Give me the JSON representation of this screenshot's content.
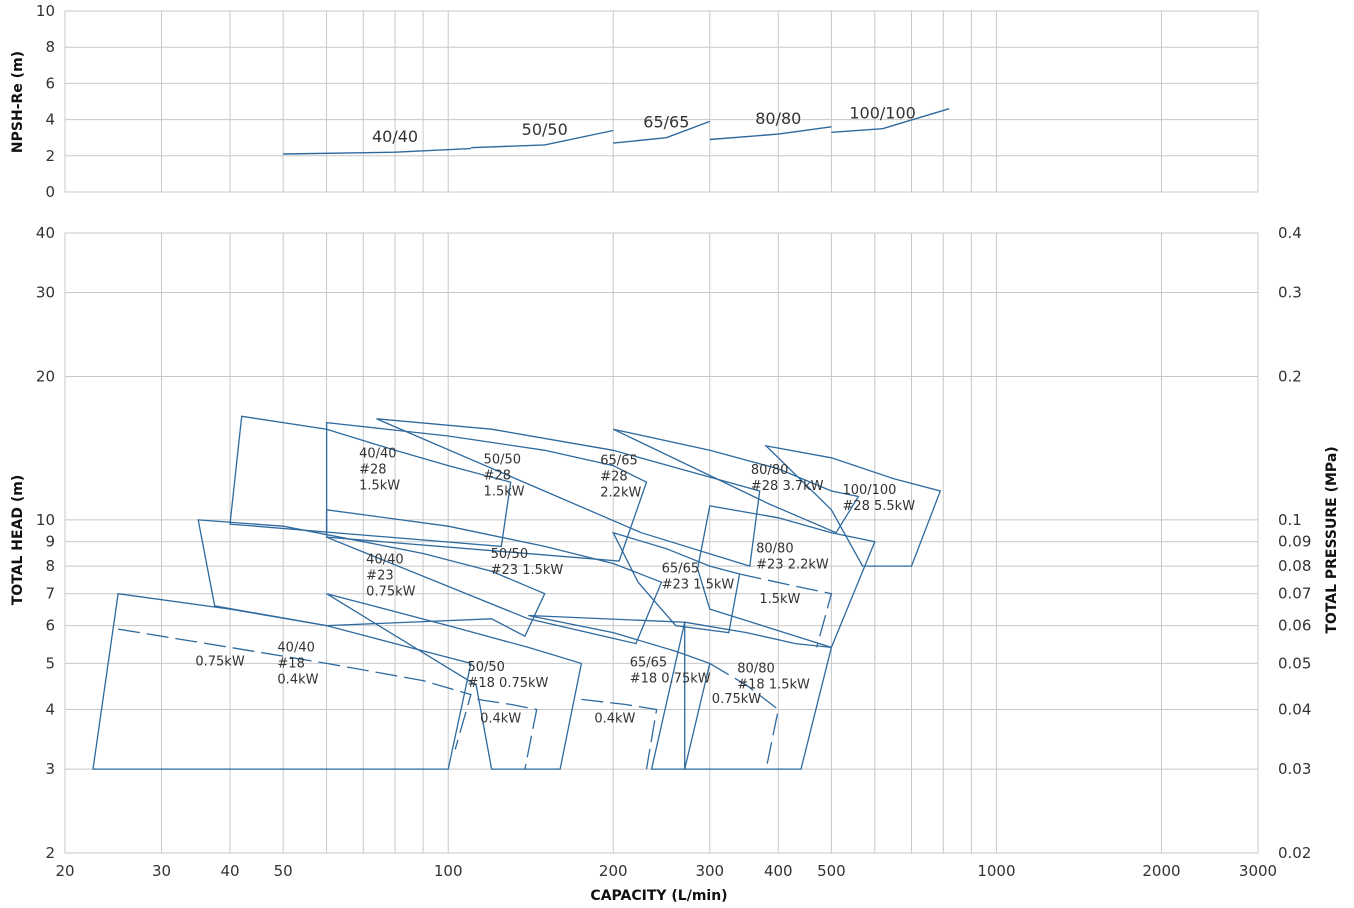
{
  "chart_data": [
    {
      "type": "line",
      "panel": "npsh",
      "ylabel": "NPSH-Re (m)",
      "xscale": "log",
      "xlim": [
        20,
        3000
      ],
      "ylim": [
        0,
        10
      ],
      "y_ticks": [
        "0",
        "2",
        "4",
        "6",
        "8",
        "10"
      ],
      "grid": true,
      "series": [
        {
          "name": "40/40",
          "points": [
            [
              50,
              2.1
            ],
            [
              80,
              2.2
            ],
            [
              110,
              2.4
            ]
          ]
        },
        {
          "name": "50/50",
          "points": [
            [
              110,
              2.45
            ],
            [
              150,
              2.6
            ],
            [
              200,
              3.4
            ]
          ]
        },
        {
          "name": "65/65",
          "points": [
            [
              200,
              2.7
            ],
            [
              250,
              3.0
            ],
            [
              300,
              3.9
            ]
          ]
        },
        {
          "name": "80/80",
          "points": [
            [
              300,
              2.9
            ],
            [
              400,
              3.2
            ],
            [
              500,
              3.6
            ]
          ]
        },
        {
          "name": "100/100",
          "points": [
            [
              500,
              3.3
            ],
            [
              620,
              3.5
            ],
            [
              820,
              4.6
            ]
          ]
        }
      ]
    },
    {
      "type": "line",
      "panel": "performance",
      "xlabel": "CAPACITY (L/min)",
      "ylabel": "TOTAL HEAD (m)",
      "y2label": "TOTAL PRESSURE (MPa)",
      "xscale": "log",
      "yscale": "log",
      "xlim": [
        20,
        3000
      ],
      "ylim": [
        2,
        40
      ],
      "x_ticks": [
        "20",
        "30",
        "40",
        "50",
        "100",
        "200",
        "300",
        "400",
        "500",
        "1000",
        "2000",
        "3000"
      ],
      "y_ticks": [
        "2",
        "3",
        "4",
        "5",
        "6",
        "7",
        "8",
        "9",
        "10",
        "20",
        "30",
        "40"
      ],
      "y2_ticks": [
        "0.02",
        "0.03",
        "0.04",
        "0.05",
        "0.06",
        "0.07",
        "0.08",
        "0.09",
        "0.1",
        "0.2",
        "0.3",
        "0.4"
      ],
      "grid": true,
      "ranges": [
        {
          "lines": [
            "40/40",
            "#28",
            "1.5kW"
          ],
          "points": [
            [
              42,
              16.5
            ],
            [
              60,
              15.5
            ],
            [
              80,
              14
            ],
            [
              100,
              13
            ],
            [
              130,
              12
            ],
            [
              125,
              8.8
            ],
            [
              40,
              9.8
            ]
          ]
        },
        {
          "lines": [
            "50/50",
            "#28",
            "1.5kW"
          ],
          "points": [
            [
              60,
              16
            ],
            [
              100,
              15
            ],
            [
              150,
              14
            ],
            [
              200,
              13
            ],
            [
              230,
              12
            ],
            [
              205,
              8.2
            ],
            [
              60,
              9.2
            ]
          ]
        },
        {
          "lines": [
            "65/65",
            "#28",
            "2.2kW"
          ],
          "points": [
            [
              74,
              16.3
            ],
            [
              120,
              15.5
            ],
            [
              200,
              14
            ],
            [
              300,
              12.3
            ],
            [
              370,
              11.5
            ],
            [
              355,
              8
            ],
            [
              225,
              9.4
            ]
          ]
        },
        {
          "lines": [
            "80/80",
            "#28 3.7kW"
          ],
          "points": [
            [
              200,
              15.5
            ],
            [
              300,
              14
            ],
            [
              400,
              12.8
            ],
            [
              500,
              11.5
            ],
            [
              560,
              11.2
            ],
            [
              510,
              9.4
            ],
            [
              385,
              10.8
            ]
          ]
        },
        {
          "lines": [
            "100/100",
            "#28 5.5kW"
          ],
          "points": [
            [
              380,
              14.3
            ],
            [
              500,
              13.5
            ],
            [
              650,
              12.2
            ],
            [
              790,
              11.5
            ],
            [
              700,
              8
            ],
            [
              570,
              8
            ],
            [
              500,
              10.5
            ]
          ]
        },
        {
          "lines": [
            "40/40",
            "#23",
            "0.75kW"
          ],
          "points": [
            [
              35,
              10
            ],
            [
              50,
              9.7
            ],
            [
              70,
              9
            ],
            [
              90,
              8.5
            ],
            [
              120,
              7.8
            ],
            [
              150,
              7
            ],
            [
              138,
              5.7
            ],
            [
              120,
              6.2
            ],
            [
              60,
              6
            ],
            [
              37.5,
              6.6
            ]
          ]
        },
        {
          "lines": [
            "50/50",
            "#23 1.5kW"
          ],
          "points": [
            [
              60,
              10.5
            ],
            [
              100,
              9.7
            ],
            [
              150,
              8.8
            ],
            [
              200,
              8.1
            ],
            [
              245,
              7.4
            ],
            [
              220,
              5.5
            ],
            [
              140,
              6.2
            ],
            [
              60,
              9.2
            ]
          ]
        },
        {
          "lines": [
            "65/65",
            "#23 1.5kW"
          ],
          "points": [
            [
              200,
              9.4
            ],
            [
              250,
              8.7
            ],
            [
              300,
              8
            ],
            [
              340,
              7.7
            ],
            [
              325,
              5.8
            ],
            [
              260,
              6
            ],
            [
              222,
              7.4
            ]
          ]
        },
        {
          "lines": [
            "80/80",
            "#23 2.2kW"
          ],
          "points": [
            [
              300,
              10.7
            ],
            [
              400,
              10.1
            ],
            [
              500,
              9.4
            ],
            [
              600,
              9
            ],
            [
              500,
              5.4
            ],
            [
              300,
              6.5
            ],
            [
              285,
              7.9
            ]
          ]
        },
        {
          "lines": [
            "40/40",
            "#18",
            "0.4kW"
          ],
          "points": [
            [
              25,
              7
            ],
            [
              40,
              6.5
            ],
            [
              60,
              6
            ],
            [
              80,
              5.5
            ],
            [
              110,
              5
            ],
            [
              100,
              3
            ],
            [
              22.5,
              3
            ]
          ]
        },
        {
          "lines": [
            "50/50",
            "#18 0.75kW"
          ],
          "points": [
            [
              60,
              7
            ],
            [
              100,
              6
            ],
            [
              140,
              5.4
            ],
            [
              175,
              5
            ],
            [
              160,
              3
            ],
            [
              120,
              3
            ],
            [
              112.5,
              4.5
            ]
          ]
        },
        {
          "lines": [
            "65/65",
            "#18 0.75kW"
          ],
          "points": [
            [
              140,
              6.3
            ],
            [
              200,
              5.8
            ],
            [
              260,
              5.3
            ],
            [
              300,
              5
            ],
            [
              270,
              3
            ],
            [
              235,
              3
            ],
            [
              270,
              6.1
            ]
          ]
        },
        {
          "lines": [
            "80/80",
            "#18 1.5kW"
          ],
          "points": [
            [
              270,
              6.1
            ],
            [
              350,
              5.8
            ],
            [
              430,
              5.5
            ],
            [
              500,
              5.4
            ],
            [
              440,
              3
            ],
            [
              270,
              3
            ]
          ]
        }
      ],
      "reduced_curves": [
        {
          "label": "0.75kW",
          "points": [
            [
              25,
              5.9
            ],
            [
              40,
              5.4
            ],
            [
              60,
              5
            ],
            [
              90,
              4.6
            ],
            [
              110,
              4.3
            ],
            [
              103,
              3.3
            ]
          ]
        },
        {
          "label": "0.4kW",
          "points": [
            [
              113,
              4.2
            ],
            [
              130,
              4.1
            ],
            [
              145,
              4
            ],
            [
              138,
              3
            ]
          ]
        },
        {
          "label": "0.4kW",
          "points": [
            [
              175,
              4.2
            ],
            [
              210,
              4.1
            ],
            [
              240,
              4
            ],
            [
              230,
              3
            ]
          ]
        },
        {
          "label": "0.75kW",
          "points": [
            [
              300,
              5
            ],
            [
              350,
              4.5
            ],
            [
              400,
              4
            ],
            [
              380,
              3
            ]
          ]
        },
        {
          "label": "1.5kW",
          "points": [
            [
              340,
              7.7
            ],
            [
              420,
              7.3
            ],
            [
              500,
              7
            ],
            [
              470,
              5.4
            ]
          ]
        }
      ]
    }
  ]
}
